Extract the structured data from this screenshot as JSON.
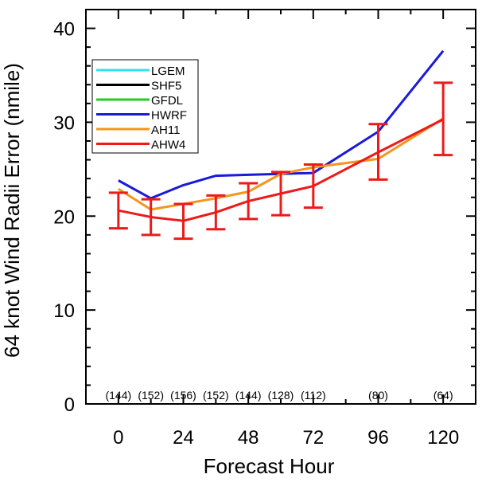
{
  "chart_data": {
    "type": "line",
    "xlabel": "Forecast Hour",
    "ylabel": "64 knot Wind Radii Error (nmile)",
    "xlim": [
      -12,
      132
    ],
    "ylim": [
      0,
      42
    ],
    "x_ticks": [
      0,
      24,
      48,
      72,
      96,
      120
    ],
    "y_ticks": [
      0,
      10,
      20,
      30,
      40
    ],
    "grid": false,
    "legend_position": "top-left",
    "sample_counts": {
      "x": [
        0,
        12,
        24,
        36,
        48,
        60,
        72,
        96,
        120
      ],
      "labels": [
        "(144)",
        "(152)",
        "(156)",
        "(152)",
        "(144)",
        "(128)",
        "(112)",
        "(80)",
        "(64)"
      ]
    },
    "series": [
      {
        "name": "LGEM",
        "color": "#33e0f0",
        "x": [],
        "values": []
      },
      {
        "name": "SHF5",
        "color": "#000000",
        "x": [],
        "values": []
      },
      {
        "name": "GFDL",
        "color": "#22cc22",
        "x": [],
        "values": []
      },
      {
        "name": "HWRF",
        "color": "#1a1ad8",
        "x": [
          0,
          12,
          24,
          36,
          48,
          60,
          72,
          96,
          120
        ],
        "values": [
          23.8,
          21.9,
          23.3,
          24.3,
          24.4,
          24.5,
          24.6,
          29.0,
          37.6
        ]
      },
      {
        "name": "AH11",
        "color": "#f5951e",
        "x": [
          0,
          12,
          24,
          36,
          48,
          60,
          72,
          96,
          120
        ],
        "values": [
          22.9,
          20.7,
          21.3,
          21.9,
          22.6,
          24.5,
          25.2,
          26.1,
          30.4
        ]
      },
      {
        "name": "AHW4",
        "color": "#ee1a1a",
        "x": [
          0,
          12,
          24,
          36,
          48,
          60,
          72,
          96,
          120
        ],
        "values": [
          20.6,
          19.9,
          19.5,
          20.4,
          21.6,
          22.4,
          23.2,
          26.8,
          30.3
        ],
        "error_low": [
          18.7,
          18.0,
          17.6,
          18.6,
          19.7,
          20.1,
          20.9,
          23.9,
          26.5
        ],
        "error_high": [
          22.5,
          21.8,
          21.3,
          22.2,
          23.5,
          24.7,
          25.5,
          29.8,
          34.2
        ]
      }
    ]
  }
}
